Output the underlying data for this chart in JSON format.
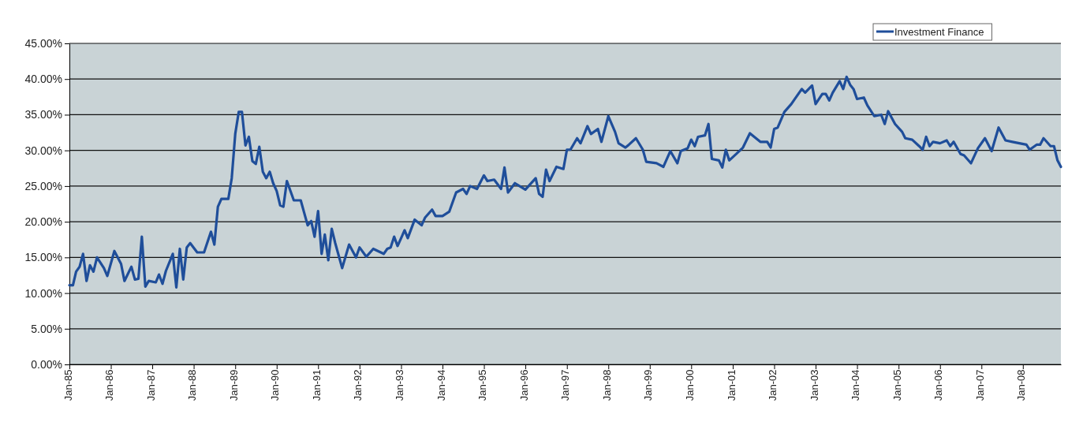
{
  "chart_data": {
    "type": "line",
    "x": [
      "1985-01",
      "1985-02",
      "1985-03",
      "1985-04",
      "1985-05",
      "1985-06",
      "1985-07",
      "1985-08",
      "1985-09",
      "1985-11",
      "1985-12",
      "1986-02",
      "1986-04",
      "1986-05",
      "1986-07",
      "1986-08",
      "1986-09",
      "1986-10",
      "1986-11",
      "1986-12",
      "1987-02",
      "1987-03",
      "1987-04",
      "1987-05",
      "1987-07",
      "1987-08",
      "1987-09",
      "1987-10",
      "1987-11",
      "1987-12",
      "1988-02",
      "1988-04",
      "1988-06",
      "1988-07",
      "1988-08",
      "1988-09",
      "1988-11",
      "1988-12",
      "1989-01",
      "1989-02",
      "1989-03",
      "1989-04",
      "1989-05",
      "1989-06",
      "1989-07",
      "1989-08",
      "1989-09",
      "1989-10",
      "1989-11",
      "1989-12",
      "1990-01",
      "1990-02",
      "1990-03",
      "1990-04",
      "1990-06",
      "1990-08",
      "1990-10",
      "1990-11",
      "1990-12",
      "1991-01",
      "1991-02",
      "1991-03",
      "1991-04",
      "1991-05",
      "1991-06",
      "1991-08",
      "1991-10",
      "1991-12",
      "1992-01",
      "1992-03",
      "1992-05",
      "1992-08",
      "1992-09",
      "1992-10",
      "1992-11",
      "1992-12",
      "1993-02",
      "1993-03",
      "1993-05",
      "1993-07",
      "1993-08",
      "1993-10",
      "1993-11",
      "1994-01",
      "1994-03",
      "1994-05",
      "1994-07",
      "1994-08",
      "1994-09",
      "1994-11",
      "1995-01",
      "1995-02",
      "1995-04",
      "1995-06",
      "1995-07",
      "1995-08",
      "1995-10",
      "1996-01",
      "1996-04",
      "1996-05",
      "1996-06",
      "1996-07",
      "1996-08",
      "1996-10",
      "1996-12",
      "1997-01",
      "1997-02",
      "1997-04",
      "1997-05",
      "1997-07",
      "1997-08",
      "1997-10",
      "1997-11",
      "1998-01",
      "1998-03",
      "1998-04",
      "1998-06",
      "1998-07",
      "1998-09",
      "1998-11",
      "1998-12",
      "1999-03",
      "1999-05",
      "1999-07",
      "1999-09",
      "1999-10",
      "1999-12",
      "2000-01",
      "2000-02",
      "2000-03",
      "2000-05",
      "2000-06",
      "2000-07",
      "2000-09",
      "2000-10",
      "2000-11",
      "2000-12",
      "2001-02",
      "2001-04",
      "2001-06",
      "2001-09",
      "2001-11",
      "2001-12",
      "2002-01",
      "2002-02",
      "2002-04",
      "2002-06",
      "2002-07",
      "2002-09",
      "2002-10",
      "2002-12",
      "2003-01",
      "2003-03",
      "2003-04",
      "2003-05",
      "2003-06",
      "2003-08",
      "2003-09",
      "2003-10",
      "2003-11",
      "2003-12",
      "2004-01",
      "2004-03",
      "2004-04",
      "2004-06",
      "2004-08",
      "2004-09",
      "2004-10",
      "2004-12",
      "2005-02",
      "2005-03",
      "2005-05",
      "2005-07",
      "2005-08",
      "2005-09",
      "2005-10",
      "2005-11",
      "2006-01",
      "2006-03",
      "2006-04",
      "2006-05",
      "2006-07",
      "2006-08",
      "2006-10",
      "2006-12",
      "2007-02",
      "2007-04",
      "2007-06",
      "2007-08",
      "2007-10",
      "2007-12",
      "2008-02",
      "2008-03",
      "2008-05",
      "2008-06",
      "2008-07",
      "2008-09",
      "2008-10",
      "2008-11",
      "2008-12"
    ],
    "series": [
      {
        "name": "Investment Finance",
        "color": "#1f4e9a",
        "values": [
          11.1,
          11.1,
          13.0,
          13.7,
          15.5,
          11.7,
          13.9,
          13.0,
          15.0,
          13.5,
          12.4,
          15.9,
          14.1,
          11.7,
          13.7,
          11.9,
          12.0,
          17.9,
          10.9,
          11.7,
          11.5,
          12.6,
          11.3,
          13.1,
          15.5,
          10.8,
          16.2,
          11.9,
          16.4,
          17.0,
          15.7,
          15.7,
          18.6,
          16.8,
          22.1,
          23.2,
          23.2,
          26.1,
          32.3,
          35.4,
          35.4,
          30.7,
          31.9,
          28.5,
          28.1,
          30.5,
          27.0,
          26.1,
          27.0,
          25.4,
          24.3,
          22.3,
          22.1,
          25.7,
          23.0,
          23.0,
          19.5,
          20.1,
          17.9,
          21.5,
          15.5,
          18.2,
          14.6,
          19.0,
          17.0,
          13.5,
          16.8,
          15.0,
          16.4,
          15.1,
          16.2,
          15.5,
          16.2,
          16.4,
          17.9,
          16.6,
          18.8,
          17.7,
          20.3,
          19.5,
          20.6,
          21.7,
          20.8,
          20.8,
          21.4,
          24.1,
          24.6,
          23.9,
          25.0,
          24.6,
          26.5,
          25.7,
          25.9,
          24.6,
          27.6,
          24.1,
          25.4,
          24.5,
          26.1,
          23.9,
          23.5,
          27.3,
          25.7,
          27.7,
          27.4,
          30.1,
          30.1,
          31.7,
          31.0,
          33.4,
          32.3,
          33.0,
          31.2,
          34.8,
          32.6,
          31.0,
          30.4,
          30.8,
          31.7,
          30.1,
          28.4,
          28.2,
          27.7,
          29.9,
          28.2,
          29.9,
          30.3,
          31.5,
          30.6,
          31.9,
          32.1,
          33.7,
          28.8,
          28.6,
          27.6,
          30.1,
          28.6,
          29.5,
          30.4,
          32.4,
          31.2,
          31.2,
          30.4,
          33.0,
          33.2,
          35.4,
          36.5,
          37.2,
          38.6,
          38.1,
          39.1,
          36.5,
          37.9,
          37.9,
          37.0,
          38.1,
          39.7,
          38.6,
          40.3,
          39.2,
          38.6,
          37.2,
          37.4,
          36.3,
          34.8,
          35.0,
          33.7,
          35.5,
          33.7,
          32.6,
          31.7,
          31.5,
          30.6,
          30.1,
          31.9,
          30.6,
          31.2,
          31.0,
          31.4,
          30.6,
          31.2,
          29.5,
          29.3,
          28.2,
          30.3,
          31.7,
          29.9,
          33.2,
          31.4,
          31.2,
          31.0,
          30.8,
          30.1,
          30.8,
          30.8,
          31.7,
          30.6,
          30.6,
          28.6,
          27.7
        ]
      }
    ],
    "xlim": [
      "1985-01",
      "2008-12"
    ],
    "xticks": [
      {
        "value": "1985-01",
        "label": "Jan-85"
      },
      {
        "value": "1986-01",
        "label": "Jan-86"
      },
      {
        "value": "1987-01",
        "label": "Jan-87"
      },
      {
        "value": "1988-01",
        "label": "Jan-88"
      },
      {
        "value": "1989-01",
        "label": "Jan-89"
      },
      {
        "value": "1990-01",
        "label": "Jan-90"
      },
      {
        "value": "1991-01",
        "label": "Jan-91"
      },
      {
        "value": "1992-01",
        "label": "Jan-92"
      },
      {
        "value": "1993-01",
        "label": "Jan-93"
      },
      {
        "value": "1994-01",
        "label": "Jan-94"
      },
      {
        "value": "1995-01",
        "label": "Jan-95"
      },
      {
        "value": "1996-01",
        "label": "Jan-96"
      },
      {
        "value": "1997-01",
        "label": "Jan-97"
      },
      {
        "value": "1998-01",
        "label": "Jan-98"
      },
      {
        "value": "1999-01",
        "label": "Jan-99"
      },
      {
        "value": "2000-01",
        "label": "Jan-00"
      },
      {
        "value": "2001-01",
        "label": "Jan-01"
      },
      {
        "value": "2002-01",
        "label": "Jan-02"
      },
      {
        "value": "2003-01",
        "label": "Jan-03"
      },
      {
        "value": "2004-01",
        "label": "Jan-04"
      },
      {
        "value": "2005-01",
        "label": "Jan-05"
      },
      {
        "value": "2006-01",
        "label": "Jan-06"
      },
      {
        "value": "2007-01",
        "label": "Jan-07"
      },
      {
        "value": "2008-01",
        "label": "Jan-08"
      }
    ],
    "ylim": [
      0,
      45
    ],
    "yticks": [
      {
        "value": 0,
        "label": "0.00%"
      },
      {
        "value": 5,
        "label": "5.00%"
      },
      {
        "value": 10,
        "label": "10.00%"
      },
      {
        "value": 15,
        "label": "15.00%"
      },
      {
        "value": 20,
        "label": "20.00%"
      },
      {
        "value": 25,
        "label": "25.00%"
      },
      {
        "value": 30,
        "label": "30.00%"
      },
      {
        "value": 35,
        "label": "35.00%"
      },
      {
        "value": 40,
        "label": "40.00%"
      },
      {
        "value": 45,
        "label": "45.00%"
      }
    ],
    "grid": "y",
    "legend": "top right",
    "marker": "none",
    "line_style": "solid"
  }
}
